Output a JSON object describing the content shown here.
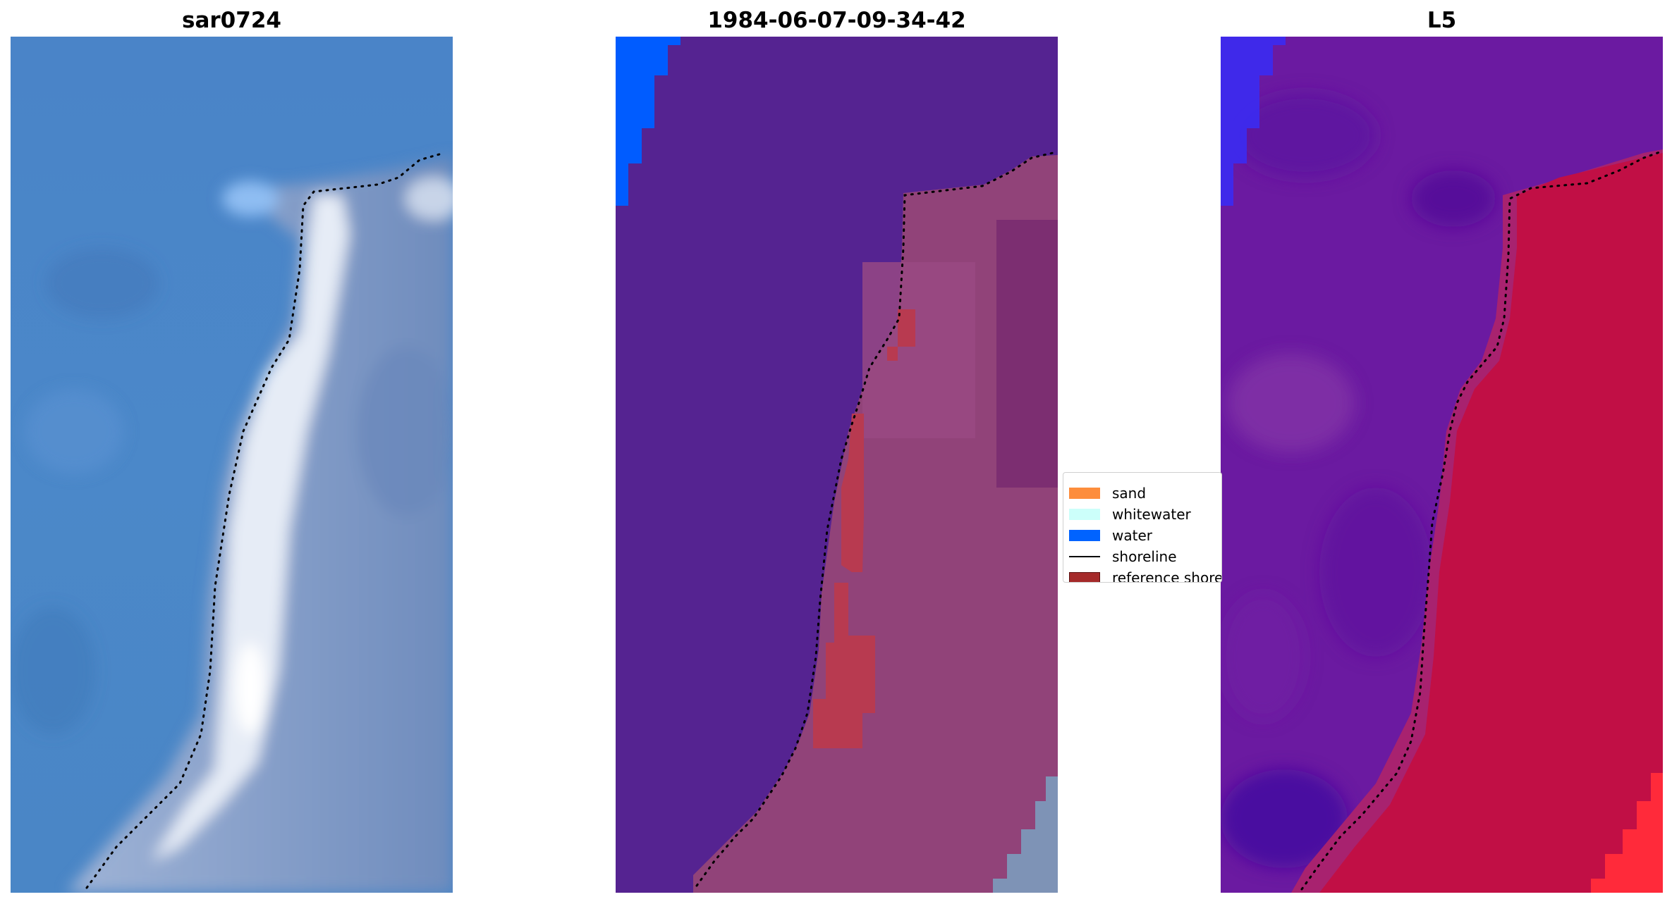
{
  "panels": [
    {
      "title": "sar0724"
    },
    {
      "title": "1984-06-07-09-34-42"
    },
    {
      "title": "L5"
    }
  ],
  "legend": {
    "items": [
      {
        "label": "sand",
        "color": "#fd8d3c",
        "kind": "patch"
      },
      {
        "label": "whitewater",
        "color": "#ccfffa",
        "kind": "patch"
      },
      {
        "label": "water",
        "color": "#0063ff",
        "kind": "patch"
      },
      {
        "label": "shoreline",
        "color": "#000000",
        "kind": "line"
      },
      {
        "label": "reference shoreline",
        "color": "#a52a2a",
        "kind": "patch"
      }
    ]
  }
}
